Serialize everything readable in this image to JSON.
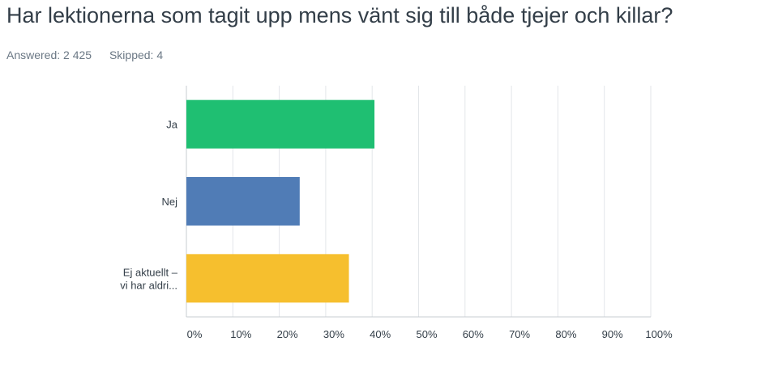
{
  "question": {
    "title": "Har lektionerna som tagit upp mens vänt sig till både tjejer och killar?",
    "answered": "Answered: 2 425",
    "skipped": "Skipped: 4"
  },
  "chart_data": {
    "type": "bar",
    "orientation": "horizontal",
    "categories": [
      [
        "Ja"
      ],
      [
        "Nej"
      ],
      [
        "Ej aktuellt –",
        "vi har aldri..."
      ]
    ],
    "values": [
      40.5,
      24.4,
      35.0
    ],
    "colors": [
      "#1fbf72",
      "#507cb6",
      "#f6bf2e"
    ],
    "xlim": [
      0,
      100
    ],
    "x_ticks": [
      "0%",
      "10%",
      "20%",
      "30%",
      "40%",
      "50%",
      "60%",
      "70%",
      "80%",
      "90%",
      "100%"
    ],
    "grid": true
  }
}
